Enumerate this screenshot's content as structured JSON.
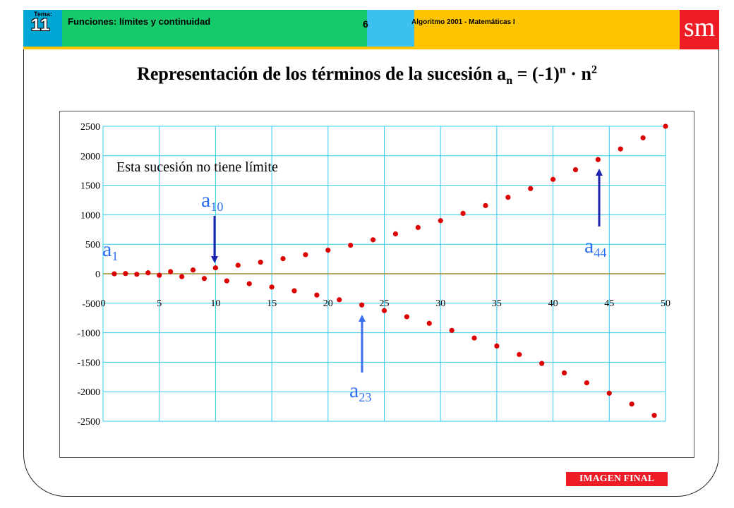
{
  "header": {
    "tema_label": "Tema:",
    "tema_number": "11",
    "topic": "Funciones: límites y continuidad",
    "page": "6",
    "series_name": "Algoritmo 2001 - Matemáticas I",
    "logo": "sm"
  },
  "title": {
    "prefix": "Representación de los términos de la sucesión a",
    "subscript": "n",
    "middle": " = (-1)",
    "superscript": "n",
    "dot": " · n",
    "exponent": "2"
  },
  "chart_data": {
    "type": "scatter",
    "formula": "a_n = (-1)^n · n^2",
    "x": [
      1,
      2,
      3,
      4,
      5,
      6,
      7,
      8,
      9,
      10,
      11,
      12,
      13,
      14,
      15,
      16,
      17,
      18,
      19,
      20,
      21,
      22,
      23,
      24,
      25,
      26,
      27,
      28,
      29,
      30,
      31,
      32,
      33,
      34,
      35,
      36,
      37,
      38,
      39,
      40,
      41,
      42,
      43,
      44,
      45,
      46,
      47,
      48,
      49,
      50
    ],
    "y": [
      -1,
      4,
      -9,
      16,
      -25,
      36,
      -49,
      64,
      -81,
      100,
      -121,
      144,
      -169,
      196,
      -225,
      256,
      -289,
      324,
      -361,
      400,
      -441,
      484,
      -529,
      576,
      -625,
      676,
      -729,
      784,
      -841,
      900,
      -961,
      1024,
      -1089,
      1156,
      -1225,
      1296,
      -1369,
      1444,
      -1521,
      1600,
      -1681,
      1764,
      -1849,
      1936,
      -2025,
      2116,
      -2209,
      2304,
      -2401,
      2500
    ],
    "xlim": [
      0,
      50
    ],
    "ylim": [
      -2500,
      2500
    ],
    "x_ticks": [
      "0",
      "5",
      "10",
      "15",
      "20",
      "25",
      "30",
      "35",
      "40",
      "45",
      "50"
    ],
    "y_ticks": [
      "2500",
      "2000",
      "1500",
      "1000",
      "500",
      "0",
      "-500",
      "-1000",
      "-1500",
      "-2000",
      "-2500"
    ],
    "grid": true,
    "marker_color": "#dd0000",
    "grid_color": "#33ccee",
    "annotation": "Esta sucesión no tiene límite",
    "labels": [
      {
        "base": "a",
        "sub": "1"
      },
      {
        "base": "a",
        "sub": "10"
      },
      {
        "base": "a",
        "sub": "23"
      },
      {
        "base": "a",
        "sub": "44"
      }
    ]
  },
  "stamp": "IMAGEN FINAL"
}
